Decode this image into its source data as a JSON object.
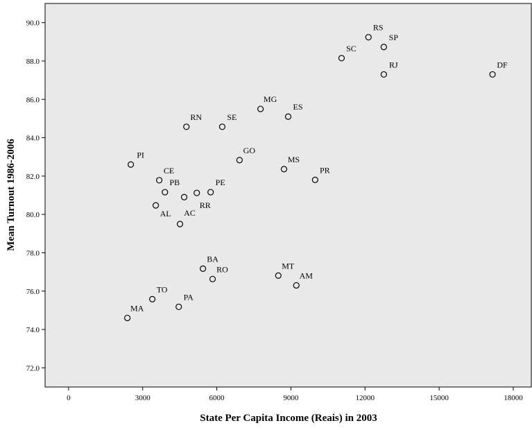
{
  "chart_data": {
    "type": "scatter",
    "x_label": "State Per Capita Income (Reais) in 2003",
    "y_label": "Mean Turnout 1986-2006",
    "xlim": [
      -950,
      18730
    ],
    "ylim": [
      71,
      91
    ],
    "xticks": [
      0,
      3000,
      6000,
      9000,
      12000,
      15000,
      18000
    ],
    "yticks": [
      {
        "value": 72,
        "label": "72.0"
      },
      {
        "value": 74,
        "label": "74.0"
      },
      {
        "value": 76,
        "label": "76.0"
      },
      {
        "value": 78,
        "label": "78.0"
      },
      {
        "value": 80,
        "label": "80.0"
      },
      {
        "value": 82,
        "label": "82.0"
      },
      {
        "value": 84,
        "label": "84.0"
      },
      {
        "value": 86,
        "label": "86.0"
      },
      {
        "value": 88,
        "label": "88.0"
      },
      {
        "value": 90,
        "label": "90.0"
      }
    ],
    "color": "#000000",
    "labels": [
      "RS",
      "SP",
      "SC",
      "RJ",
      "DF",
      "MG",
      "ES",
      "RN",
      "SE",
      "GO",
      "MS",
      "PI",
      "CE",
      "PR",
      "PB",
      "PE",
      "RR",
      null,
      "AL",
      "AC",
      "BA",
      "RO",
      "MT",
      "AM",
      "TO",
      "PA",
      "MA"
    ],
    "x": [
      12140,
      12760,
      11050,
      12760,
      17160,
      7770,
      8890,
      4770,
      6220,
      6920,
      8720,
      2520,
      3670,
      9980,
      3900,
      5750,
      5190,
      4680,
      3530,
      4510,
      5440,
      5830,
      8490,
      9220,
      3390,
      4460,
      2380
    ],
    "values": [
      89.24,
      88.73,
      88.15,
      87.3,
      87.3,
      85.5,
      85.1,
      84.57,
      84.57,
      82.83,
      82.36,
      82.6,
      81.78,
      81.8,
      81.16,
      81.16,
      81.12,
      80.9,
      80.47,
      79.5,
      77.17,
      76.63,
      76.81,
      76.3,
      75.58,
      75.18,
      74.6
    ]
  }
}
